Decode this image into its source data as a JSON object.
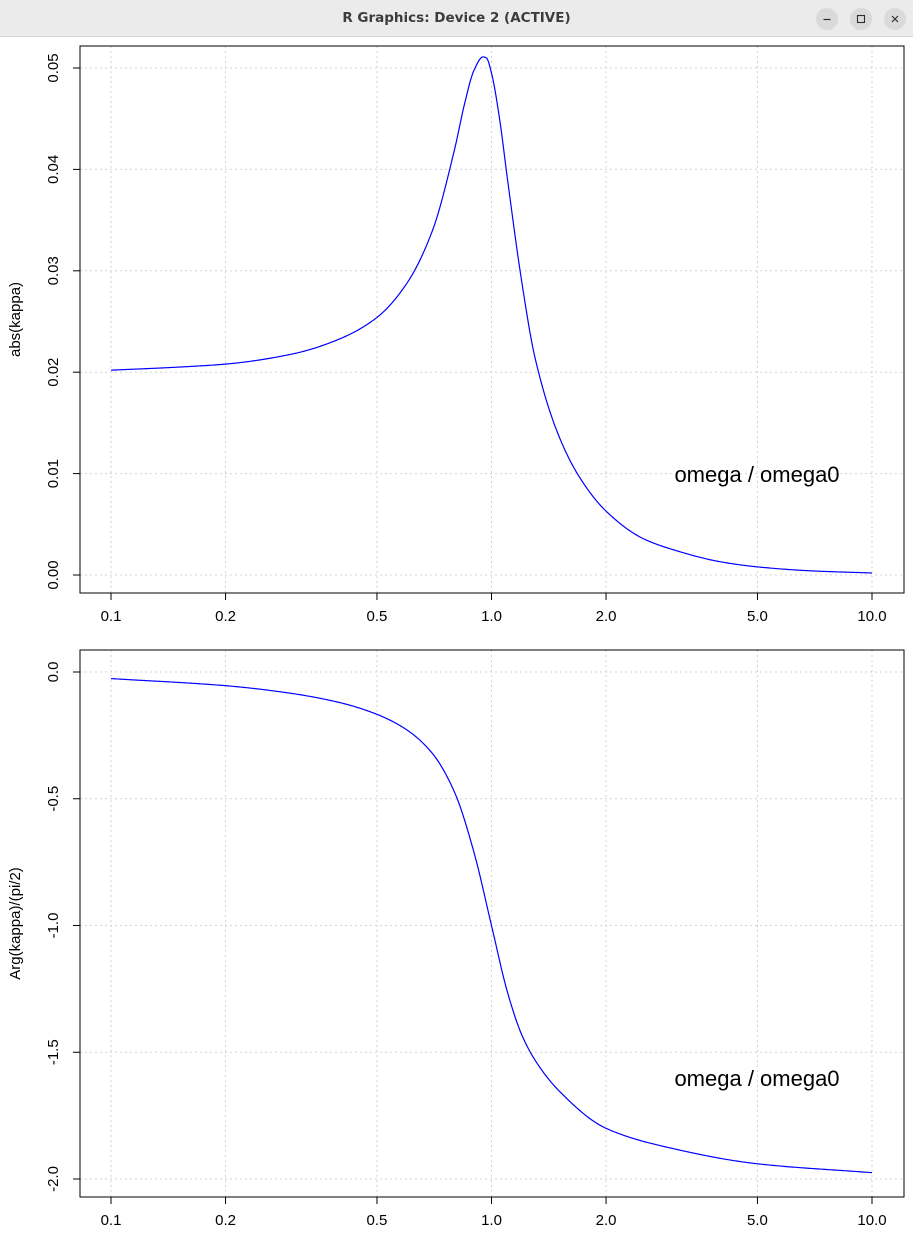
{
  "window": {
    "title": "R Graphics: Device 2 (ACTIVE)",
    "controls": {
      "minimize_icon": "minimize-icon",
      "maximize_icon": "maximize-icon",
      "close_icon": "close-icon"
    }
  },
  "colors": {
    "curve": "#0000ff",
    "grid": "#d3d3d3",
    "axis": "#000000",
    "titlebar": "#ebebeb"
  },
  "chart_data": [
    {
      "type": "line",
      "title": "",
      "ylabel": "abs(kappa)",
      "annotation": "omega / omega0",
      "x_scale": "log",
      "xlim": [
        0.1,
        10
      ],
      "ylim": [
        0,
        0.05
      ],
      "x_ticks": [
        0.1,
        0.2,
        0.5,
        1,
        2,
        5,
        10
      ],
      "x_tick_labels": [
        "0.1",
        "0.2",
        "0.5",
        "1.0",
        "2.0",
        "5.0",
        "10.0"
      ],
      "y_ticks": [
        0,
        0.01,
        0.02,
        0.03,
        0.04,
        0.05
      ],
      "y_tick_labels": [
        "0.00",
        "0.01",
        "0.02",
        "0.03",
        "0.04",
        "0.05"
      ],
      "grid": true,
      "series": [
        {
          "x": [
            0.1,
            0.15,
            0.2,
            0.3,
            0.4,
            0.5,
            0.6,
            0.7,
            0.8,
            0.85,
            0.9,
            0.95,
            0.97,
            1.0,
            1.05,
            1.1,
            1.2,
            1.3,
            1.5,
            1.7,
            2.0,
            2.5,
            3.0,
            4.0,
            5.0,
            7.0,
            10.0
          ],
          "y": [
            0.0202,
            0.0205,
            0.0208,
            0.0218,
            0.0233,
            0.0254,
            0.0288,
            0.034,
            0.042,
            0.0465,
            0.0498,
            0.0511,
            0.051,
            0.0495,
            0.045,
            0.0392,
            0.029,
            0.0215,
            0.0138,
            0.0097,
            0.0063,
            0.0036,
            0.0025,
            0.0013,
            0.0008,
            0.0004,
            0.0002
          ]
        }
      ]
    },
    {
      "type": "line",
      "title": "",
      "ylabel": "Arg(kappa)/(pi/2)",
      "annotation": "omega / omega0",
      "x_scale": "log",
      "xlim": [
        0.1,
        10
      ],
      "ylim": [
        -2.0,
        0.0
      ],
      "x_ticks": [
        0.1,
        0.2,
        0.5,
        1,
        2,
        5,
        10
      ],
      "x_tick_labels": [
        "0.1",
        "0.2",
        "0.5",
        "1.0",
        "2.0",
        "5.0",
        "10.0"
      ],
      "y_ticks": [
        0,
        -0.5,
        -1.0,
        -1.5,
        -2.0
      ],
      "y_tick_labels": [
        "0.0",
        "-0.5",
        "-1.0",
        "-1.5",
        "-2.0"
      ],
      "grid": true,
      "series": [
        {
          "x": [
            0.1,
            0.2,
            0.3,
            0.4,
            0.5,
            0.6,
            0.7,
            0.8,
            0.9,
            1.0,
            1.1,
            1.2,
            1.3,
            1.5,
            2.0,
            3.0,
            5.0,
            10.0
          ],
          "y": [
            -0.026,
            -0.054,
            -0.085,
            -0.121,
            -0.167,
            -0.229,
            -0.322,
            -0.475,
            -0.713,
            -1.0,
            -1.26,
            -1.43,
            -1.53,
            -1.65,
            -1.8,
            -1.88,
            -1.94,
            -1.975
          ]
        }
      ]
    }
  ]
}
